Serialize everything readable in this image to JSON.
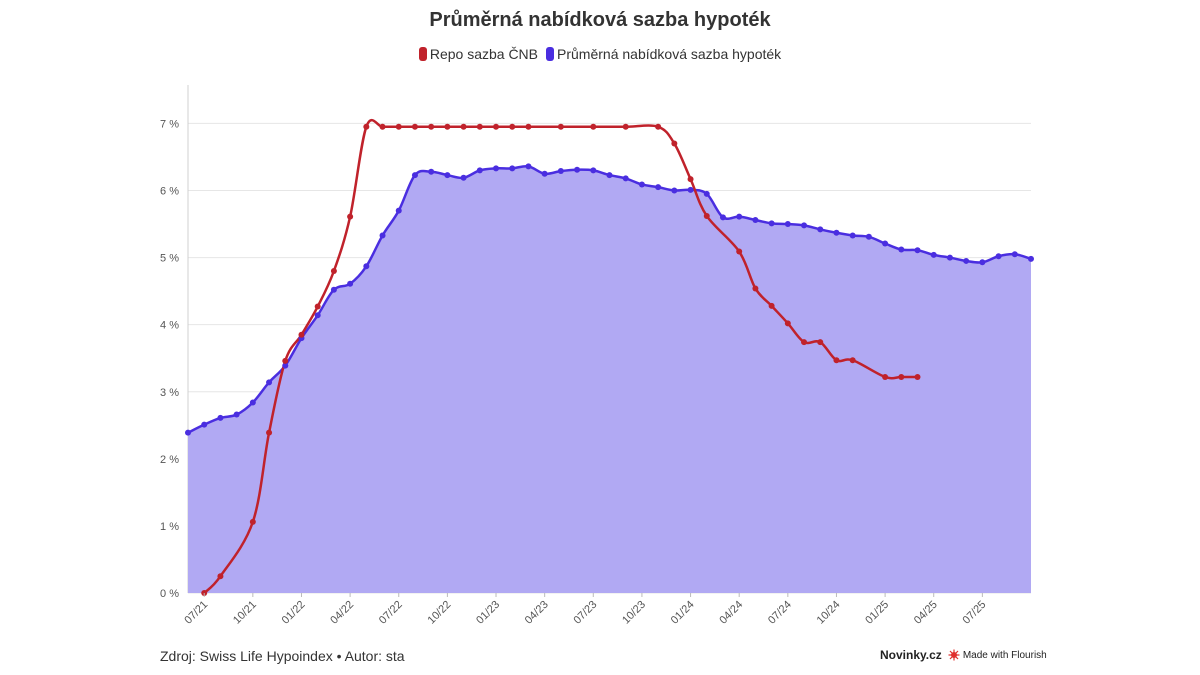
{
  "title": "Průměrná nabídková sazba hypoték",
  "legend": [
    {
      "label": "Repo sazba ČNB",
      "color": "#c0222b"
    },
    {
      "label": "Průměrná nabídková sazba hypoték",
      "color": "#4a2ee0"
    }
  ],
  "footer": {
    "source": "Zdroj: Swiss Life Hypoindex • Autor: sta",
    "brand": "Novinky.cz",
    "badge": "Made with Flourish"
  },
  "colors": {
    "repo": "#c0222b",
    "mortgage_line": "#4a2ee0",
    "mortgage_fill": "#b1a9f3",
    "grid": "#e6e6e6"
  },
  "chart_data": {
    "type": "area",
    "title": "Průměrná nabídková sazba hypoték",
    "ylim": [
      0,
      7.2
    ],
    "y_ticks": [
      {
        "value": 0,
        "label": "0 %"
      },
      {
        "value": 1,
        "label": "1 %"
      },
      {
        "value": 2,
        "label": "2 %"
      },
      {
        "value": 3,
        "label": "3 %"
      },
      {
        "value": 4,
        "label": "4 %"
      },
      {
        "value": 5,
        "label": "5 %"
      },
      {
        "value": 6,
        "label": "6 %"
      },
      {
        "value": 7,
        "label": "7 %"
      }
    ],
    "x_ticks": [
      {
        "month": "2021-07",
        "label": "07/21"
      },
      {
        "month": "2021-10",
        "label": "10/21"
      },
      {
        "month": "2022-01",
        "label": "01/22"
      },
      {
        "month": "2022-04",
        "label": "04/22"
      },
      {
        "month": "2022-07",
        "label": "07/22"
      },
      {
        "month": "2022-10",
        "label": "10/22"
      },
      {
        "month": "2023-01",
        "label": "01/23"
      },
      {
        "month": "2023-04",
        "label": "04/23"
      },
      {
        "month": "2023-07",
        "label": "07/23"
      },
      {
        "month": "2023-10",
        "label": "10/23"
      },
      {
        "month": "2024-01",
        "label": "01/24"
      },
      {
        "month": "2024-04",
        "label": "04/24"
      },
      {
        "month": "2024-07",
        "label": "07/24"
      },
      {
        "month": "2024-10",
        "label": "10/24"
      },
      {
        "month": "2025-01",
        "label": "01/25"
      },
      {
        "month": "2025-04",
        "label": "04/25"
      },
      {
        "month": "2025-07",
        "label": "07/25"
      }
    ],
    "x_range": [
      "2021-06",
      "2025-10"
    ],
    "grid": true,
    "legend_position": "top-center",
    "series": [
      {
        "name": "Průměrná nabídková sazba hypoték",
        "style": "area",
        "points": [
          [
            "2021-06",
            2.39
          ],
          [
            "2021-07",
            2.51
          ],
          [
            "2021-08",
            2.61
          ],
          [
            "2021-09",
            2.66
          ],
          [
            "2021-10",
            2.84
          ],
          [
            "2021-11",
            3.14
          ],
          [
            "2021-12",
            3.39
          ],
          [
            "2022-01",
            3.8
          ],
          [
            "2022-02",
            4.14
          ],
          [
            "2022-03",
            4.52
          ],
          [
            "2022-04",
            4.61
          ],
          [
            "2022-05",
            4.87
          ],
          [
            "2022-06",
            5.33
          ],
          [
            "2022-07",
            5.7
          ],
          [
            "2022-08",
            6.23
          ],
          [
            "2022-09",
            6.28
          ],
          [
            "2022-10",
            6.23
          ],
          [
            "2022-11",
            6.19
          ],
          [
            "2022-12",
            6.3
          ],
          [
            "2023-01",
            6.33
          ],
          [
            "2023-02",
            6.33
          ],
          [
            "2023-03",
            6.36
          ],
          [
            "2023-04",
            6.25
          ],
          [
            "2023-05",
            6.29
          ],
          [
            "2023-06",
            6.31
          ],
          [
            "2023-07",
            6.3
          ],
          [
            "2023-08",
            6.23
          ],
          [
            "2023-09",
            6.18
          ],
          [
            "2023-10",
            6.09
          ],
          [
            "2023-11",
            6.05
          ],
          [
            "2023-12",
            6.0
          ],
          [
            "2024-01",
            6.01
          ],
          [
            "2024-02",
            5.95
          ],
          [
            "2024-03",
            5.6
          ],
          [
            "2024-04",
            5.61
          ],
          [
            "2024-05",
            5.56
          ],
          [
            "2024-06",
            5.51
          ],
          [
            "2024-07",
            5.5
          ],
          [
            "2024-08",
            5.48
          ],
          [
            "2024-09",
            5.42
          ],
          [
            "2024-10",
            5.37
          ],
          [
            "2024-11",
            5.33
          ],
          [
            "2024-12",
            5.31
          ],
          [
            "2025-01",
            5.21
          ],
          [
            "2025-02",
            5.12
          ],
          [
            "2025-03",
            5.11
          ],
          [
            "2025-04",
            5.04
          ],
          [
            "2025-05",
            5.0
          ],
          [
            "2025-06",
            4.95
          ],
          [
            "2025-07",
            4.93
          ],
          [
            "2025-08",
            5.02
          ],
          [
            "2025-09",
            5.05
          ],
          [
            "2025-10",
            4.98
          ]
        ]
      },
      {
        "name": "Repo sazba ČNB",
        "style": "line",
        "points": [
          [
            "2021-07",
            0.0
          ],
          [
            "2021-08",
            0.25
          ],
          [
            "2021-10",
            1.06
          ],
          [
            "2021-11",
            2.39
          ],
          [
            "2021-12",
            3.46
          ],
          [
            "2022-01",
            3.85
          ],
          [
            "2022-02",
            4.27
          ],
          [
            "2022-03",
            4.8
          ],
          [
            "2022-04",
            5.61
          ],
          [
            "2022-05",
            6.95
          ],
          [
            "2022-06",
            6.95
          ],
          [
            "2022-07",
            6.95
          ],
          [
            "2022-08",
            6.95
          ],
          [
            "2022-09",
            6.95
          ],
          [
            "2022-10",
            6.95
          ],
          [
            "2022-11",
            6.95
          ],
          [
            "2022-12",
            6.95
          ],
          [
            "2023-01",
            6.95
          ],
          [
            "2023-02",
            6.95
          ],
          [
            "2023-03",
            6.95
          ],
          [
            "2023-05",
            6.95
          ],
          [
            "2023-07",
            6.95
          ],
          [
            "2023-09",
            6.95
          ],
          [
            "2023-11",
            6.95
          ],
          [
            "2023-12",
            6.7
          ],
          [
            "2024-01",
            6.17
          ],
          [
            "2024-02",
            5.62
          ],
          [
            "2024-04",
            5.09
          ],
          [
            "2024-05",
            4.54
          ],
          [
            "2024-06",
            4.28
          ],
          [
            "2024-07",
            4.02
          ],
          [
            "2024-08",
            3.74
          ],
          [
            "2024-09",
            3.74
          ],
          [
            "2024-10",
            3.47
          ],
          [
            "2024-11",
            3.47
          ],
          [
            "2025-01",
            3.22
          ],
          [
            "2025-02",
            3.22
          ],
          [
            "2025-03",
            3.22
          ]
        ]
      }
    ]
  }
}
